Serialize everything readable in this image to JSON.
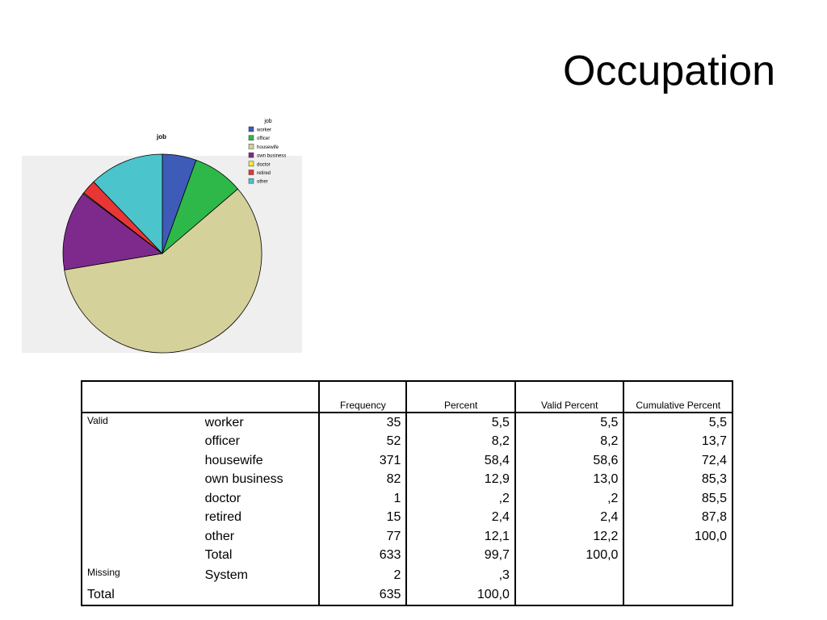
{
  "slide": {
    "title": "Occupation"
  },
  "chart_data": {
    "type": "pie",
    "title": "job",
    "legend_title": "job",
    "legend_position": "top-right",
    "background": "#efefef",
    "slices": [
      {
        "label": "worker",
        "value": 35,
        "color": "#3f5bb8"
      },
      {
        "label": "officer",
        "value": 52,
        "color": "#2eb84a"
      },
      {
        "label": "housewife",
        "value": 371,
        "color": "#d5d19b"
      },
      {
        "label": "own business",
        "value": 82,
        "color": "#7e2a8c"
      },
      {
        "label": "doctor",
        "value": 1,
        "color": "#f2ee3a"
      },
      {
        "label": "retired",
        "value": 15,
        "color": "#e83535"
      },
      {
        "label": "other",
        "value": 77,
        "color": "#4cc4cc"
      }
    ]
  },
  "table": {
    "headers": [
      "Frequency",
      "Percent",
      "Valid Percent",
      "Cumulative Percent"
    ],
    "valid_label": "Valid",
    "missing_label": "Missing",
    "total_label": "Total",
    "valid_rows": [
      {
        "category": "worker",
        "frequency": "35",
        "percent": "5,5",
        "valid_percent": "5,5",
        "cumulative_percent": "5,5"
      },
      {
        "category": "officer",
        "frequency": "52",
        "percent": "8,2",
        "valid_percent": "8,2",
        "cumulative_percent": "13,7"
      },
      {
        "category": "housewife",
        "frequency": "371",
        "percent": "58,4",
        "valid_percent": "58,6",
        "cumulative_percent": "72,4"
      },
      {
        "category": "own business",
        "frequency": "82",
        "percent": "12,9",
        "valid_percent": "13,0",
        "cumulative_percent": "85,3"
      },
      {
        "category": "doctor",
        "frequency": "1",
        "percent": ",2",
        "valid_percent": ",2",
        "cumulative_percent": "85,5"
      },
      {
        "category": "retired",
        "frequency": "15",
        "percent": "2,4",
        "valid_percent": "2,4",
        "cumulative_percent": "87,8"
      },
      {
        "category": "other",
        "frequency": "77",
        "percent": "12,1",
        "valid_percent": "12,2",
        "cumulative_percent": "100,0"
      },
      {
        "category": "Total",
        "frequency": "633",
        "percent": "99,7",
        "valid_percent": "100,0",
        "cumulative_percent": ""
      }
    ],
    "missing_rows": [
      {
        "category": "System",
        "frequency": "2",
        "percent": ",3",
        "valid_percent": "",
        "cumulative_percent": ""
      }
    ],
    "grand_total": {
      "frequency": "635",
      "percent": "100,0",
      "valid_percent": "",
      "cumulative_percent": ""
    }
  }
}
